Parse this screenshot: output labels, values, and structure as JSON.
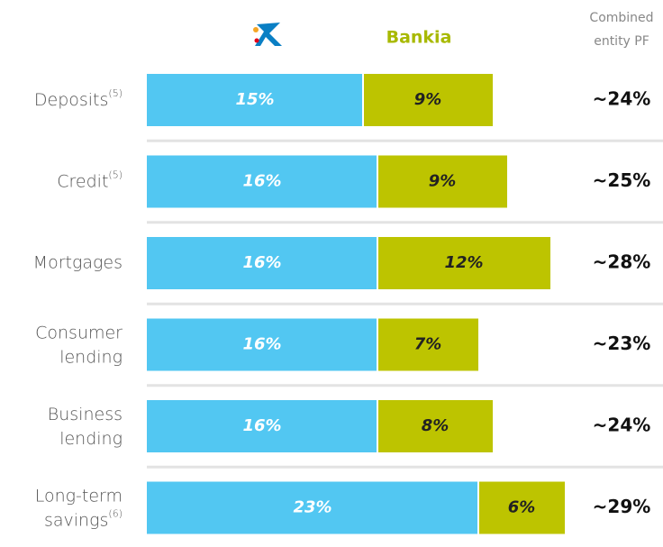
{
  "chart_data": {
    "type": "stacked-bar-horizontal",
    "categories": [
      "Deposits",
      "Credit",
      "Mortgages",
      "Consumer lending",
      "Business lending",
      "Long-term savings"
    ],
    "category_notes": [
      "(5)",
      "(5)",
      null,
      null,
      null,
      "(6)"
    ],
    "series": [
      {
        "color": "#52c7f2",
        "values": [
          15,
          16,
          16,
          16,
          16,
          23
        ],
        "value_labels": [
          "15%",
          "16%",
          "16%",
          "16%",
          "16%",
          "23%"
        ]
      },
      {
        "name": "Bankia",
        "color": "#bdc400",
        "values": [
          9,
          9,
          12,
          7,
          8,
          6
        ],
        "value_labels": [
          "9%",
          "9%",
          "12%",
          "7%",
          "8%",
          "6%"
        ]
      }
    ],
    "totals_header": [
      "Combined",
      "entity PF"
    ],
    "totals": [
      24,
      25,
      28,
      23,
      24,
      29
    ],
    "total_labels": [
      "~24%",
      "~25%",
      "~28%",
      "~23%",
      "~24%",
      "~29%"
    ]
  }
}
